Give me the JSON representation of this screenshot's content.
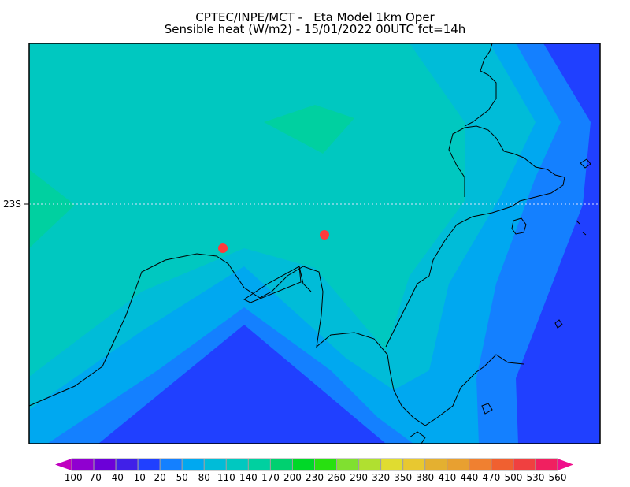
{
  "title": {
    "line1": "CPTEC/INPE/MCT -   Eta Model 1km Oper",
    "line2": "Sensible heat (W/m2) - 15/01/2022 00UTC fct=14h"
  },
  "map": {
    "lat_label": "23S",
    "markers_color": "#ff3b3b",
    "marker_count": 2
  },
  "colorbar": {
    "labels": [
      "-100",
      "-70",
      "-40",
      "-10",
      "20",
      "50",
      "80",
      "110",
      "140",
      "170",
      "200",
      "230",
      "260",
      "290",
      "320",
      "350",
      "380",
      "410",
      "440",
      "470",
      "500",
      "530",
      "560"
    ],
    "colors": [
      "#9000d0",
      "#6c00d8",
      "#4020e8",
      "#2040ff",
      "#1480ff",
      "#00a8f0",
      "#00bcd8",
      "#00c8c0",
      "#00d0a0",
      "#00d070",
      "#00d828",
      "#28e010",
      "#80e030",
      "#b0e030",
      "#e0dc30",
      "#e8c830",
      "#e4b030",
      "#e8a030",
      "#f08030",
      "#f06030",
      "#f04040",
      "#f02060"
    ],
    "low_color": "#c000c0",
    "high_color": "#f0108c"
  }
}
